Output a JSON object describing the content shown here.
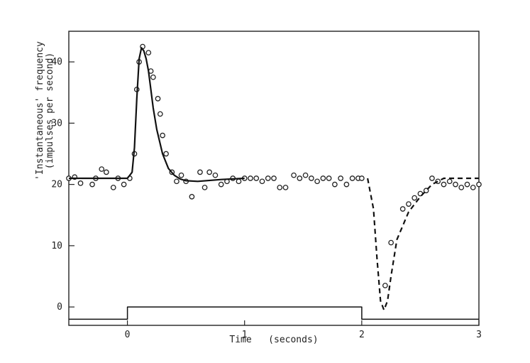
{
  "chart_data": {
    "type": "scatter",
    "title": "",
    "xlabel": "Time   (seconds)",
    "ylabel_lines": [
      "'Instantaneous' frequency",
      "(impulses per second)"
    ],
    "xlim": [
      -0.5,
      3.0
    ],
    "ylim": [
      -3,
      45
    ],
    "x_ticks": [
      0,
      1,
      2,
      3
    ],
    "x_tick_labels": [
      "0",
      "1",
      "2",
      "3"
    ],
    "y_ticks": [
      0,
      10,
      20,
      30,
      40
    ],
    "y_tick_labels": [
      "0",
      "10",
      "20",
      "30",
      "40"
    ],
    "grid": false,
    "series": [
      {
        "style": "open-circle-markers",
        "x": [
          -0.5,
          -0.45,
          -0.4,
          -0.3,
          -0.27,
          -0.22,
          -0.18,
          -0.12,
          -0.08,
          -0.03,
          0.02,
          0.06,
          0.08,
          0.1,
          0.13,
          0.18,
          0.2,
          0.22,
          0.26,
          0.28,
          0.3,
          0.33,
          0.38,
          0.42,
          0.46,
          0.5,
          0.55,
          0.62,
          0.66,
          0.7,
          0.75,
          0.8,
          0.85,
          0.9,
          0.95,
          1.0,
          1.05,
          1.1,
          1.15,
          1.2,
          1.25,
          1.3,
          1.35,
          1.42,
          1.47,
          1.52,
          1.57,
          1.62,
          1.67,
          1.72,
          1.77,
          1.82,
          1.87,
          1.92,
          1.97,
          2.0,
          2.2,
          2.25,
          2.35,
          2.4,
          2.45,
          2.5,
          2.55,
          2.6,
          2.65,
          2.7,
          2.75,
          2.8,
          2.85,
          2.9,
          2.95,
          3.0
        ],
        "y": [
          21,
          21.2,
          20.2,
          20,
          21,
          22.5,
          22,
          19.5,
          21,
          20,
          21,
          25,
          35.5,
          40,
          42.5,
          41.5,
          38.5,
          37.5,
          34,
          31.5,
          28,
          25,
          22,
          20.5,
          21.5,
          20.5,
          18,
          22,
          19.5,
          22,
          21.5,
          20,
          20.5,
          21,
          20.5,
          21,
          21,
          21,
          20.5,
          21,
          21,
          19.5,
          19.5,
          21.5,
          21,
          21.5,
          21,
          20.5,
          21,
          21,
          20,
          21,
          20,
          21,
          21,
          21,
          3.5,
          10.5,
          16,
          16.8,
          17.8,
          18.5,
          19,
          21,
          20.5,
          20,
          20.5,
          20,
          19.5,
          20,
          19.5,
          20
        ]
      },
      {
        "style": "solid-line",
        "x": [
          -0.5,
          0.0,
          0.04,
          0.06,
          0.08,
          0.1,
          0.12,
          0.14,
          0.16,
          0.18,
          0.2,
          0.22,
          0.25,
          0.3,
          0.35,
          0.4,
          0.45,
          0.5,
          0.6,
          0.8,
          1.0
        ],
        "y": [
          21,
          21,
          22,
          26,
          34,
          40.5,
          42.3,
          41.8,
          40.5,
          38.5,
          35.5,
          32.5,
          29,
          25,
          22.6,
          21.5,
          20.9,
          20.6,
          20.5,
          20.8,
          21
        ]
      },
      {
        "style": "dashed-line",
        "x": [
          2.05,
          2.1,
          2.13,
          2.16,
          2.19,
          2.22,
          2.25,
          2.3,
          2.4,
          2.5,
          2.6,
          2.7,
          2.8,
          2.9,
          3.0
        ],
        "y": [
          21,
          16,
          8,
          1,
          -0.5,
          1,
          5,
          11,
          15.5,
          18,
          20,
          21,
          21,
          21,
          21
        ]
      },
      {
        "style": "stimulus-step",
        "x": [
          -0.5,
          0,
          0,
          2,
          2,
          3
        ],
        "y": [
          -2,
          -2,
          0,
          0,
          -2,
          -2
        ]
      }
    ]
  }
}
